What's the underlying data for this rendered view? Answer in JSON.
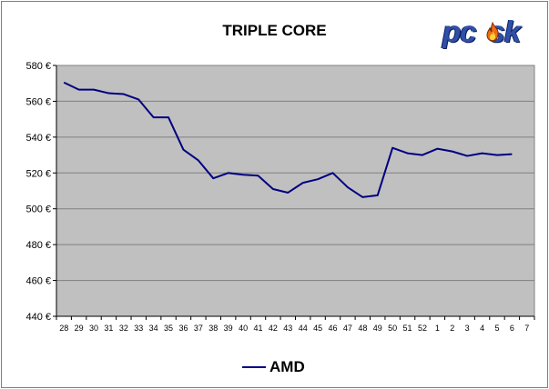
{
  "logo": {
    "text": "pc",
    "text_after": "sk",
    "icon": "flame-icon"
  },
  "colors": {
    "plot_bg": "#c0c0c0",
    "line": "#000080",
    "grid": "#808080"
  },
  "chart_data": {
    "type": "line",
    "title": "TRIPLE CORE",
    "xlabel": "",
    "ylabel": "",
    "categories": [
      "28",
      "29",
      "30",
      "31",
      "32",
      "33",
      "34",
      "35",
      "36",
      "37",
      "38",
      "39",
      "40",
      "41",
      "42",
      "43",
      "44",
      "45",
      "46",
      "47",
      "48",
      "49",
      "50",
      "51",
      "52",
      "1",
      "2",
      "3",
      "4",
      "5",
      "6",
      "7"
    ],
    "y_ticks": [
      440,
      460,
      480,
      500,
      520,
      540,
      560,
      580
    ],
    "y_tick_suffix": " €",
    "ylim": [
      440,
      580
    ],
    "grid": true,
    "legend_position": "bottom",
    "series": [
      {
        "name": "AMD",
        "color": "#000080",
        "values": [
          570.5,
          566.5,
          566.5,
          564.5,
          564,
          561,
          551,
          551,
          533,
          527,
          517,
          520,
          519,
          518.5,
          511,
          509,
          514.5,
          516.5,
          520,
          512,
          506.5,
          507.5,
          534,
          531,
          530,
          533.5,
          532,
          529.5,
          531,
          530,
          530.5,
          null
        ]
      }
    ]
  }
}
